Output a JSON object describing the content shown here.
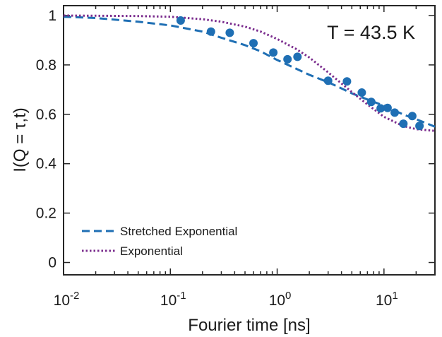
{
  "chart_data": {
    "type": "scatter",
    "annotation": "T = 43.5 K",
    "xlabel": "Fourier time [ns]",
    "ylabel": "I(Q = τ,t)",
    "xscale": "log",
    "xlim": [
      0.01,
      30
    ],
    "ylim": [
      -0.05,
      1.04
    ],
    "grid": false,
    "legend_placement": "bottom-left",
    "x_tick_labels": [
      {
        "base": "10",
        "exp": "-2",
        "value": 0.01
      },
      {
        "base": "10",
        "exp": "-1",
        "value": 0.1
      },
      {
        "base": "10",
        "exp": "0",
        "value": 1
      },
      {
        "base": "10",
        "exp": "1",
        "value": 10
      }
    ],
    "y_tick_labels": [
      {
        "text": "0",
        "value": 0
      },
      {
        "text": "0.2",
        "value": 0.2
      },
      {
        "text": "0.4",
        "value": 0.4
      },
      {
        "text": "0.6",
        "value": 0.6
      },
      {
        "text": "0.8",
        "value": 0.8
      },
      {
        "text": "1",
        "value": 1
      }
    ],
    "points": {
      "color": "#1f6fb4",
      "x": [
        0.125,
        0.24,
        0.36,
        0.6,
        0.92,
        1.25,
        1.55,
        3.0,
        4.5,
        6.2,
        7.6,
        9.3,
        10.8,
        12.6,
        15.2,
        18.4,
        21.5
      ],
      "y": [
        0.98,
        0.935,
        0.93,
        0.888,
        0.85,
        0.823,
        0.833,
        0.736,
        0.733,
        0.688,
        0.65,
        0.624,
        0.626,
        0.607,
        0.562,
        0.593,
        0.553
      ]
    },
    "series": [
      {
        "name": "Stretched Exponential",
        "color": "#1f6fb4",
        "line_style": "dashed",
        "x": [
          0.01,
          0.02,
          0.05,
          0.1,
          0.2,
          0.3,
          0.5,
          0.7,
          1,
          1.5,
          2,
          3,
          4,
          5,
          7,
          10,
          15,
          20,
          30
        ],
        "y": [
          0.995,
          0.99,
          0.975,
          0.96,
          0.935,
          0.91,
          0.88,
          0.855,
          0.82,
          0.785,
          0.76,
          0.73,
          0.705,
          0.685,
          0.66,
          0.635,
          0.6,
          0.58,
          0.55
        ]
      },
      {
        "name": "Exponential",
        "color": "#7b2d8e",
        "line_style": "dotted",
        "x": [
          0.01,
          0.05,
          0.1,
          0.2,
          0.3,
          0.5,
          0.7,
          1,
          1.5,
          2,
          3,
          4,
          5,
          7,
          10,
          15,
          20,
          30
        ],
        "y": [
          1.0,
          0.998,
          0.995,
          0.985,
          0.975,
          0.955,
          0.935,
          0.905,
          0.865,
          0.83,
          0.77,
          0.725,
          0.69,
          0.64,
          0.59,
          0.553,
          0.54,
          0.533
        ]
      }
    ]
  }
}
